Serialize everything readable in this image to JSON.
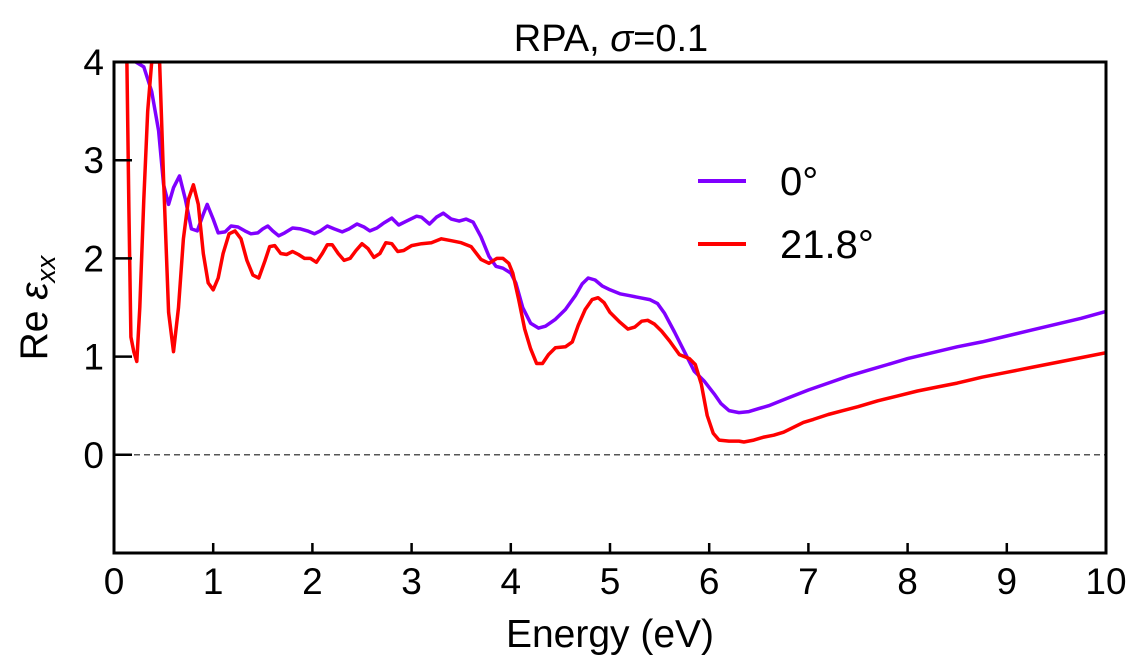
{
  "chart_data": {
    "type": "line",
    "title_main": "RPA, ",
    "title_sym": "σ",
    "title_rest": "=0.1",
    "xlabel": "Energy (eV)",
    "ylabel_main": "Re ",
    "ylabel_sym": "ε",
    "ylabel_sub": "xx",
    "xlim": [
      0,
      10
    ],
    "ylim": [
      -1,
      4
    ],
    "xticks": [
      0,
      1,
      2,
      3,
      4,
      5,
      6,
      7,
      8,
      9,
      10
    ],
    "xtick_labels": [
      "0",
      "1",
      "2",
      "3",
      "4",
      "5",
      "6",
      "7",
      "8",
      "9",
      "10"
    ],
    "yticks": [
      0,
      1,
      2,
      3,
      4
    ],
    "ytick_labels": [
      "0",
      "1",
      "2",
      "3",
      "4"
    ],
    "legend_position": "right",
    "reference_line": {
      "y": 0,
      "style": "dashed",
      "color": "#555555"
    },
    "series": [
      {
        "name": "0°",
        "color": "#8000ff",
        "points": [
          [
            0.22,
            4.0
          ],
          [
            0.3,
            3.95
          ],
          [
            0.38,
            3.7
          ],
          [
            0.45,
            3.3
          ],
          [
            0.5,
            2.75
          ],
          [
            0.55,
            2.55
          ],
          [
            0.6,
            2.72
          ],
          [
            0.66,
            2.84
          ],
          [
            0.72,
            2.6
          ],
          [
            0.78,
            2.3
          ],
          [
            0.84,
            2.28
          ],
          [
            0.9,
            2.45
          ],
          [
            0.94,
            2.55
          ],
          [
            1.0,
            2.4
          ],
          [
            1.05,
            2.26
          ],
          [
            1.12,
            2.27
          ],
          [
            1.18,
            2.33
          ],
          [
            1.25,
            2.32
          ],
          [
            1.32,
            2.28
          ],
          [
            1.38,
            2.25
          ],
          [
            1.45,
            2.26
          ],
          [
            1.5,
            2.3
          ],
          [
            1.55,
            2.33
          ],
          [
            1.6,
            2.28
          ],
          [
            1.66,
            2.23
          ],
          [
            1.72,
            2.26
          ],
          [
            1.8,
            2.31
          ],
          [
            1.88,
            2.3
          ],
          [
            1.95,
            2.28
          ],
          [
            2.02,
            2.25
          ],
          [
            2.08,
            2.28
          ],
          [
            2.15,
            2.33
          ],
          [
            2.22,
            2.3
          ],
          [
            2.3,
            2.27
          ],
          [
            2.37,
            2.3
          ],
          [
            2.45,
            2.35
          ],
          [
            2.52,
            2.32
          ],
          [
            2.58,
            2.28
          ],
          [
            2.65,
            2.31
          ],
          [
            2.72,
            2.36
          ],
          [
            2.8,
            2.41
          ],
          [
            2.87,
            2.34
          ],
          [
            2.95,
            2.38
          ],
          [
            3.05,
            2.43
          ],
          [
            3.1,
            2.42
          ],
          [
            3.18,
            2.35
          ],
          [
            3.25,
            2.42
          ],
          [
            3.32,
            2.46
          ],
          [
            3.4,
            2.4
          ],
          [
            3.48,
            2.38
          ],
          [
            3.55,
            2.4
          ],
          [
            3.62,
            2.37
          ],
          [
            3.7,
            2.22
          ],
          [
            3.78,
            2.02
          ],
          [
            3.85,
            1.92
          ],
          [
            3.92,
            1.9
          ],
          [
            4.0,
            1.85
          ],
          [
            4.05,
            1.75
          ],
          [
            4.12,
            1.5
          ],
          [
            4.2,
            1.34
          ],
          [
            4.28,
            1.29
          ],
          [
            4.35,
            1.31
          ],
          [
            4.45,
            1.38
          ],
          [
            4.55,
            1.48
          ],
          [
            4.65,
            1.62
          ],
          [
            4.72,
            1.74
          ],
          [
            4.78,
            1.8
          ],
          [
            4.85,
            1.78
          ],
          [
            4.92,
            1.72
          ],
          [
            5.0,
            1.68
          ],
          [
            5.1,
            1.64
          ],
          [
            5.2,
            1.62
          ],
          [
            5.3,
            1.6
          ],
          [
            5.4,
            1.58
          ],
          [
            5.48,
            1.54
          ],
          [
            5.55,
            1.44
          ],
          [
            5.65,
            1.25
          ],
          [
            5.75,
            1.05
          ],
          [
            5.85,
            0.85
          ],
          [
            5.95,
            0.75
          ],
          [
            6.05,
            0.62
          ],
          [
            6.12,
            0.52
          ],
          [
            6.2,
            0.45
          ],
          [
            6.3,
            0.43
          ],
          [
            6.4,
            0.44
          ],
          [
            6.5,
            0.47
          ],
          [
            6.6,
            0.5
          ],
          [
            6.7,
            0.54
          ],
          [
            6.8,
            0.58
          ],
          [
            6.9,
            0.62
          ],
          [
            7.0,
            0.66
          ],
          [
            7.2,
            0.73
          ],
          [
            7.4,
            0.8
          ],
          [
            7.6,
            0.86
          ],
          [
            7.8,
            0.92
          ],
          [
            8.0,
            0.98
          ],
          [
            8.25,
            1.04
          ],
          [
            8.5,
            1.1
          ],
          [
            8.75,
            1.15
          ],
          [
            9.0,
            1.21
          ],
          [
            9.25,
            1.27
          ],
          [
            9.5,
            1.33
          ],
          [
            9.75,
            1.39
          ],
          [
            10.0,
            1.46
          ]
        ]
      },
      {
        "name": "21.8°",
        "color": "#ff0000",
        "points": [
          [
            0.13,
            4.0
          ],
          [
            0.15,
            2.5
          ],
          [
            0.17,
            1.2
          ],
          [
            0.2,
            1.05
          ],
          [
            0.23,
            0.95
          ],
          [
            0.26,
            1.5
          ],
          [
            0.3,
            2.6
          ],
          [
            0.34,
            3.5
          ],
          [
            0.38,
            4.0
          ],
          [
            0.42,
            4.0
          ],
          [
            0.46,
            4.0
          ],
          [
            0.5,
            2.8
          ],
          [
            0.55,
            1.45
          ],
          [
            0.6,
            1.05
          ],
          [
            0.65,
            1.5
          ],
          [
            0.7,
            2.2
          ],
          [
            0.75,
            2.6
          ],
          [
            0.8,
            2.75
          ],
          [
            0.85,
            2.55
          ],
          [
            0.9,
            2.05
          ],
          [
            0.95,
            1.75
          ],
          [
            1.0,
            1.68
          ],
          [
            1.05,
            1.8
          ],
          [
            1.1,
            2.05
          ],
          [
            1.16,
            2.25
          ],
          [
            1.22,
            2.28
          ],
          [
            1.28,
            2.2
          ],
          [
            1.34,
            1.98
          ],
          [
            1.4,
            1.83
          ],
          [
            1.46,
            1.8
          ],
          [
            1.52,
            1.97
          ],
          [
            1.57,
            2.12
          ],
          [
            1.62,
            2.13
          ],
          [
            1.68,
            2.05
          ],
          [
            1.74,
            2.04
          ],
          [
            1.8,
            2.07
          ],
          [
            1.86,
            2.04
          ],
          [
            1.92,
            2.0
          ],
          [
            1.98,
            2.0
          ],
          [
            2.04,
            1.96
          ],
          [
            2.1,
            2.05
          ],
          [
            2.15,
            2.14
          ],
          [
            2.2,
            2.14
          ],
          [
            2.26,
            2.05
          ],
          [
            2.32,
            1.98
          ],
          [
            2.38,
            2.0
          ],
          [
            2.44,
            2.08
          ],
          [
            2.5,
            2.15
          ],
          [
            2.56,
            2.1
          ],
          [
            2.62,
            2.01
          ],
          [
            2.68,
            2.05
          ],
          [
            2.74,
            2.16
          ],
          [
            2.8,
            2.15
          ],
          [
            2.86,
            2.07
          ],
          [
            2.92,
            2.08
          ],
          [
            3.0,
            2.13
          ],
          [
            3.1,
            2.15
          ],
          [
            3.2,
            2.16
          ],
          [
            3.3,
            2.2
          ],
          [
            3.4,
            2.18
          ],
          [
            3.5,
            2.16
          ],
          [
            3.6,
            2.12
          ],
          [
            3.7,
            1.99
          ],
          [
            3.78,
            1.95
          ],
          [
            3.86,
            2.0
          ],
          [
            3.92,
            2.0
          ],
          [
            3.98,
            1.95
          ],
          [
            4.02,
            1.85
          ],
          [
            4.08,
            1.58
          ],
          [
            4.14,
            1.28
          ],
          [
            4.2,
            1.08
          ],
          [
            4.26,
            0.93
          ],
          [
            4.32,
            0.93
          ],
          [
            4.38,
            1.02
          ],
          [
            4.45,
            1.09
          ],
          [
            4.55,
            1.1
          ],
          [
            4.62,
            1.15
          ],
          [
            4.68,
            1.32
          ],
          [
            4.75,
            1.48
          ],
          [
            4.82,
            1.58
          ],
          [
            4.88,
            1.6
          ],
          [
            4.94,
            1.55
          ],
          [
            5.0,
            1.45
          ],
          [
            5.1,
            1.35
          ],
          [
            5.18,
            1.28
          ],
          [
            5.25,
            1.3
          ],
          [
            5.32,
            1.36
          ],
          [
            5.38,
            1.37
          ],
          [
            5.45,
            1.33
          ],
          [
            5.52,
            1.26
          ],
          [
            5.6,
            1.16
          ],
          [
            5.7,
            1.02
          ],
          [
            5.8,
            0.98
          ],
          [
            5.86,
            0.92
          ],
          [
            5.92,
            0.72
          ],
          [
            5.98,
            0.4
          ],
          [
            6.04,
            0.22
          ],
          [
            6.1,
            0.15
          ],
          [
            6.2,
            0.14
          ],
          [
            6.3,
            0.14
          ],
          [
            6.35,
            0.13
          ],
          [
            6.45,
            0.15
          ],
          [
            6.55,
            0.18
          ],
          [
            6.65,
            0.2
          ],
          [
            6.75,
            0.23
          ],
          [
            6.85,
            0.28
          ],
          [
            6.95,
            0.33
          ],
          [
            7.05,
            0.36
          ],
          [
            7.2,
            0.41
          ],
          [
            7.35,
            0.45
          ],
          [
            7.5,
            0.49
          ],
          [
            7.7,
            0.55
          ],
          [
            7.9,
            0.6
          ],
          [
            8.1,
            0.65
          ],
          [
            8.3,
            0.69
          ],
          [
            8.5,
            0.73
          ],
          [
            8.75,
            0.79
          ],
          [
            9.0,
            0.84
          ],
          [
            9.25,
            0.89
          ],
          [
            9.5,
            0.94
          ],
          [
            9.75,
            0.99
          ],
          [
            10.0,
            1.04
          ]
        ]
      }
    ]
  }
}
